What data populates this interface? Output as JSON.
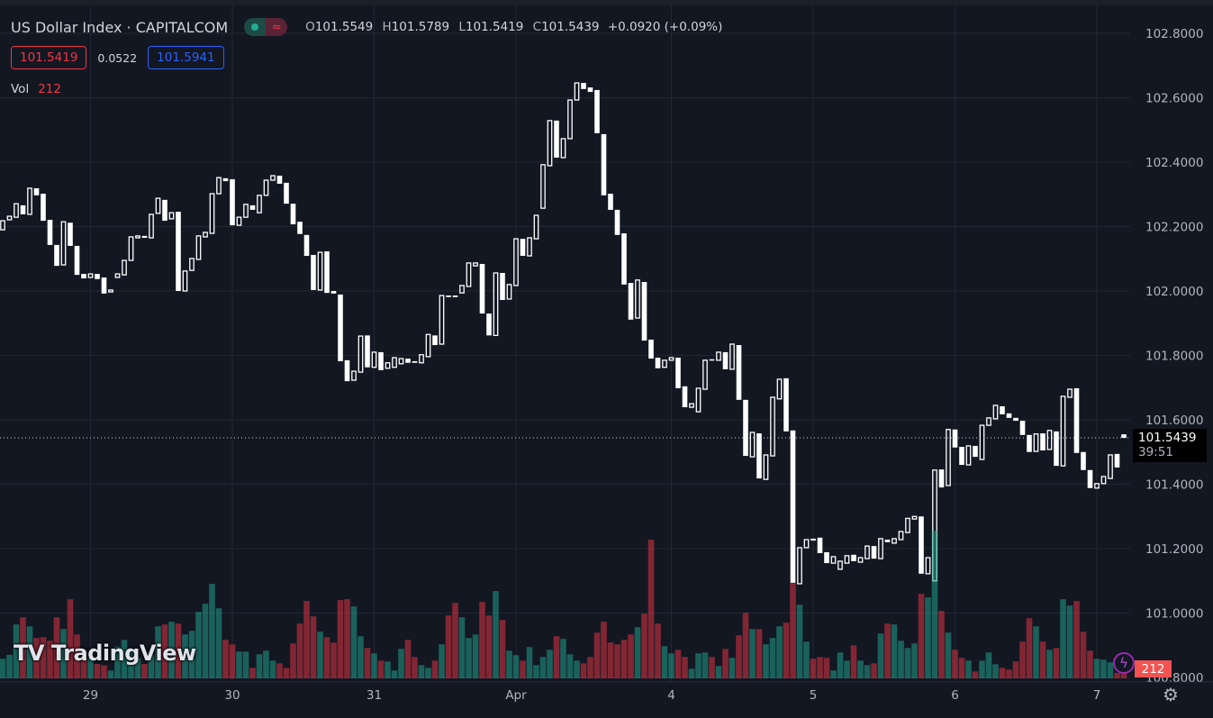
{
  "header": {
    "title": "US Dollar Index · CAPITALCOM",
    "market_status_icon": "green-dot",
    "indicator_icon": "approx-equal",
    "ohlc": {
      "o_label": "O",
      "o": "101.5549",
      "h_label": "H",
      "h": "101.5789",
      "l_label": "L",
      "l": "101.5419",
      "c_label": "C",
      "c": "101.5439",
      "change": "+0.0920 (+0.09%)"
    },
    "bid": "101.5419",
    "spread": "0.0522",
    "ask": "101.5941",
    "vol_label": "Vol",
    "vol_value": "212"
  },
  "price_scale": {
    "last_price": "101.5439",
    "countdown": "39:51",
    "volume_badge": "212"
  },
  "colors": {
    "background": "#131722",
    "up_volume": "#22ab94",
    "down_volume": "#f23645",
    "candle": "#ffffff",
    "bid": "#f23645",
    "ask": "#2962ff"
  },
  "watermark": "TradingView",
  "icons": {
    "alert": "lightning-icon",
    "settings": "gear-icon"
  },
  "chart_data": {
    "type": "candlestick",
    "candle_style": "hollow up, filled down, no wicks",
    "ylim": [
      100.8,
      102.8
    ],
    "y_ticks": [
      "102.8000",
      "102.6000",
      "102.4000",
      "102.2000",
      "102.0000",
      "101.8000",
      "101.6000",
      "101.4000",
      "101.2000",
      "101.0000",
      "100.8000"
    ],
    "y_tick_values": [
      102.8,
      102.6,
      102.4,
      102.2,
      102.0,
      101.8,
      101.6,
      101.4,
      101.2,
      101.0,
      100.8
    ],
    "x_ticks": [
      "29",
      "30",
      "31",
      "Apr",
      "4",
      "5",
      "6",
      "7"
    ],
    "x_tick_candle_index": [
      13,
      34,
      55,
      76,
      99,
      120,
      141,
      162
    ],
    "grid": true,
    "last_price": 101.5439,
    "candles_oc": [
      [
        102.19,
        102.218
      ],
      [
        102.221,
        102.232
      ],
      [
        102.229,
        102.271
      ],
      [
        102.266,
        102.238
      ],
      [
        102.238,
        102.319
      ],
      [
        102.319,
        102.297
      ],
      [
        102.302,
        102.218
      ],
      [
        102.221,
        102.143
      ],
      [
        102.143,
        102.078
      ],
      [
        102.081,
        102.215
      ],
      [
        102.212,
        102.14
      ],
      [
        102.14,
        102.05
      ],
      [
        102.053,
        102.039
      ],
      [
        102.042,
        102.053
      ],
      [
        102.053,
        102.037
      ],
      [
        102.042,
        101.992
      ],
      [
        101.997,
        102.003
      ],
      [
        102.042,
        102.053
      ],
      [
        102.05,
        102.095
      ],
      [
        102.095,
        102.168
      ],
      [
        102.165,
        102.171
      ],
      [
        102.171,
        102.165
      ],
      [
        102.165,
        102.238
      ],
      [
        102.241,
        102.288
      ],
      [
        102.283,
        102.218
      ],
      [
        102.224,
        102.243
      ],
      [
        102.246,
        102.0
      ],
      [
        102.0,
        102.062
      ],
      [
        102.064,
        102.101
      ],
      [
        102.098,
        102.171
      ],
      [
        102.168,
        102.182
      ],
      [
        102.179,
        102.302
      ],
      [
        102.302,
        102.352
      ],
      [
        102.35,
        102.341
      ],
      [
        102.347,
        102.204
      ],
      [
        102.204,
        102.229
      ],
      [
        102.229,
        102.269
      ],
      [
        102.266,
        102.252
      ],
      [
        102.243,
        102.297
      ],
      [
        102.297,
        102.344
      ],
      [
        102.344,
        102.358
      ],
      [
        102.358,
        102.333
      ],
      [
        102.336,
        102.271
      ],
      [
        102.271,
        102.207
      ],
      [
        102.215,
        102.177
      ],
      [
        102.174,
        102.109
      ],
      [
        102.112,
        102.003
      ],
      [
        102.003,
        102.12
      ],
      [
        102.123,
        101.994
      ],
      [
        102.0,
        101.992
      ],
      [
        101.989,
        101.782
      ],
      [
        101.785,
        101.72
      ],
      [
        101.723,
        101.751
      ],
      [
        101.748,
        101.86
      ],
      [
        101.862,
        101.763
      ],
      [
        101.763,
        101.81
      ],
      [
        101.81,
        101.754
      ],
      [
        101.76,
        101.777
      ],
      [
        101.763,
        101.793
      ],
      [
        101.774,
        101.79
      ],
      [
        101.79,
        101.777
      ],
      [
        101.782,
        101.777
      ],
      [
        101.777,
        101.802
      ],
      [
        101.796,
        101.865
      ],
      [
        101.862,
        101.832
      ],
      [
        101.835,
        101.986
      ],
      [
        101.986,
        101.981
      ],
      [
        101.986,
        101.981
      ],
      [
        101.994,
        102.017
      ],
      [
        102.014,
        102.087
      ],
      [
        102.078,
        102.087
      ],
      [
        102.084,
        101.93
      ],
      [
        101.93,
        101.862
      ],
      [
        101.862,
        102.056
      ],
      [
        102.056,
        101.972
      ],
      [
        101.975,
        102.02
      ],
      [
        102.017,
        102.162
      ],
      [
        102.162,
        102.109
      ],
      [
        102.109,
        102.165
      ],
      [
        102.162,
        102.235
      ],
      [
        102.257,
        102.392
      ],
      [
        102.389,
        102.529
      ],
      [
        102.529,
        102.414
      ],
      [
        102.414,
        102.473
      ],
      [
        102.473,
        102.593
      ],
      [
        102.593,
        102.646
      ],
      [
        102.646,
        102.627
      ],
      [
        102.632,
        102.618
      ],
      [
        102.624,
        102.49
      ],
      [
        102.487,
        102.297
      ],
      [
        102.302,
        102.252
      ],
      [
        102.252,
        102.174
      ],
      [
        102.179,
        102.02
      ],
      [
        102.025,
        101.911
      ],
      [
        101.916,
        102.034
      ],
      [
        102.028,
        101.846
      ],
      [
        101.849,
        101.79
      ],
      [
        101.793,
        101.76
      ],
      [
        101.763,
        101.785
      ],
      [
        101.785,
        101.793
      ],
      [
        101.793,
        101.698
      ],
      [
        101.704,
        101.639
      ],
      [
        101.639,
        101.65
      ],
      [
        101.625,
        101.698
      ],
      [
        101.695,
        101.785
      ],
      [
        101.788,
        101.785
      ],
      [
        101.785,
        101.81
      ],
      [
        101.81,
        101.757
      ],
      [
        101.757,
        101.835
      ],
      [
        101.832,
        101.662
      ],
      [
        101.662,
        101.488
      ],
      [
        101.485,
        101.561
      ],
      [
        101.558,
        101.418
      ],
      [
        101.415,
        101.491
      ],
      [
        101.488,
        101.67
      ],
      [
        101.665,
        101.726
      ],
      [
        101.729,
        101.564
      ],
      [
        101.567,
        101.094
      ],
      [
        101.091,
        101.203
      ],
      [
        101.203,
        101.228
      ],
      [
        101.231,
        101.225
      ],
      [
        101.234,
        101.186
      ],
      [
        101.189,
        101.155
      ],
      [
        101.155,
        101.175
      ],
      [
        101.136,
        101.161
      ],
      [
        101.155,
        101.178
      ],
      [
        101.181,
        101.161
      ],
      [
        101.158,
        101.172
      ],
      [
        101.169,
        101.208
      ],
      [
        101.208,
        101.169
      ],
      [
        101.169,
        101.231
      ],
      [
        101.228,
        101.22
      ],
      [
        101.217,
        101.231
      ],
      [
        101.228,
        101.253
      ],
      [
        101.25,
        101.294
      ],
      [
        101.292,
        101.3
      ],
      [
        101.3,
        101.122
      ],
      [
        101.122,
        101.172
      ],
      [
        101.1,
        101.444
      ],
      [
        101.446,
        101.39
      ],
      [
        101.396,
        101.57
      ],
      [
        101.57,
        101.514
      ],
      [
        101.516,
        101.46
      ],
      [
        101.46,
        101.519
      ],
      [
        101.519,
        101.485
      ],
      [
        101.477,
        101.583
      ],
      [
        101.583,
        101.606
      ],
      [
        101.603,
        101.645
      ],
      [
        101.642,
        101.617
      ],
      [
        101.62,
        101.606
      ],
      [
        101.606,
        101.597
      ],
      [
        101.597,
        101.553
      ],
      [
        101.553,
        101.5
      ],
      [
        101.502,
        101.556
      ],
      [
        101.558,
        101.505
      ],
      [
        101.508,
        101.567
      ],
      [
        101.564,
        101.457
      ],
      [
        101.457,
        101.673
      ],
      [
        101.67,
        101.695
      ],
      [
        101.698,
        101.497
      ],
      [
        101.5,
        101.444
      ],
      [
        101.444,
        101.388
      ],
      [
        101.388,
        101.402
      ],
      [
        101.402,
        101.424
      ],
      [
        101.418,
        101.491
      ],
      [
        101.494,
        101.452
      ],
      [
        101.5549,
        101.5439
      ]
    ],
    "volume": [
      715,
      858,
      1969,
      2233,
      1903,
      1474,
      1507,
      1375,
      2233,
      1804,
      2893,
      1606,
      968,
      748,
      528,
      473,
      286,
      1166,
      1408,
      968,
      748,
      528,
      858,
      1903,
      1969,
      2068,
      2002,
      1606,
      1738,
      2431,
      2728,
      3454,
      2563,
      1408,
      1243,
      979,
      979,
      385,
      880,
      1012,
      649,
      550,
      385,
      1276,
      2002,
      2827,
      2266,
      1705,
      1507,
      1309,
      2860,
      2893,
      2629,
      1540,
      1111,
      913,
      649,
      616,
      286,
      1078,
      1408,
      781,
      484,
      385,
      649,
      1243,
      2299,
      2761,
      2233,
      1474,
      1606,
      2794,
      2299,
      3190,
      2134,
      1012,
      847,
      649,
      1144,
      484,
      781,
      1045,
      1540,
      1441,
      880,
      649,
      550,
      781,
      1672,
      2068,
      1309,
      1243,
      1408,
      1606,
      1870,
      2365,
      5071,
      2002,
      1177,
      913,
      1045,
      781,
      352,
      913,
      946,
      781,
      451,
      1078,
      748,
      1573,
      2398,
      1804,
      1804,
      1243,
      1474,
      1903,
      2035,
      3487,
      2695,
      1342,
      715,
      781,
      748,
      286,
      946,
      649,
      1210,
      649,
      484,
      550,
      1639,
      2002,
      1969,
      1375,
      1111,
      1276,
      3091,
      2959,
      5401,
      2464,
      1672,
      1045,
      748,
      649,
      253,
      649,
      946,
      517,
      385,
      319,
      616,
      1342,
      2200,
      1903,
      1342,
      1045,
      1111,
      2893,
      2662,
      2827,
      1705,
      1012,
      715,
      682,
      583,
      198,
      212
    ]
  }
}
